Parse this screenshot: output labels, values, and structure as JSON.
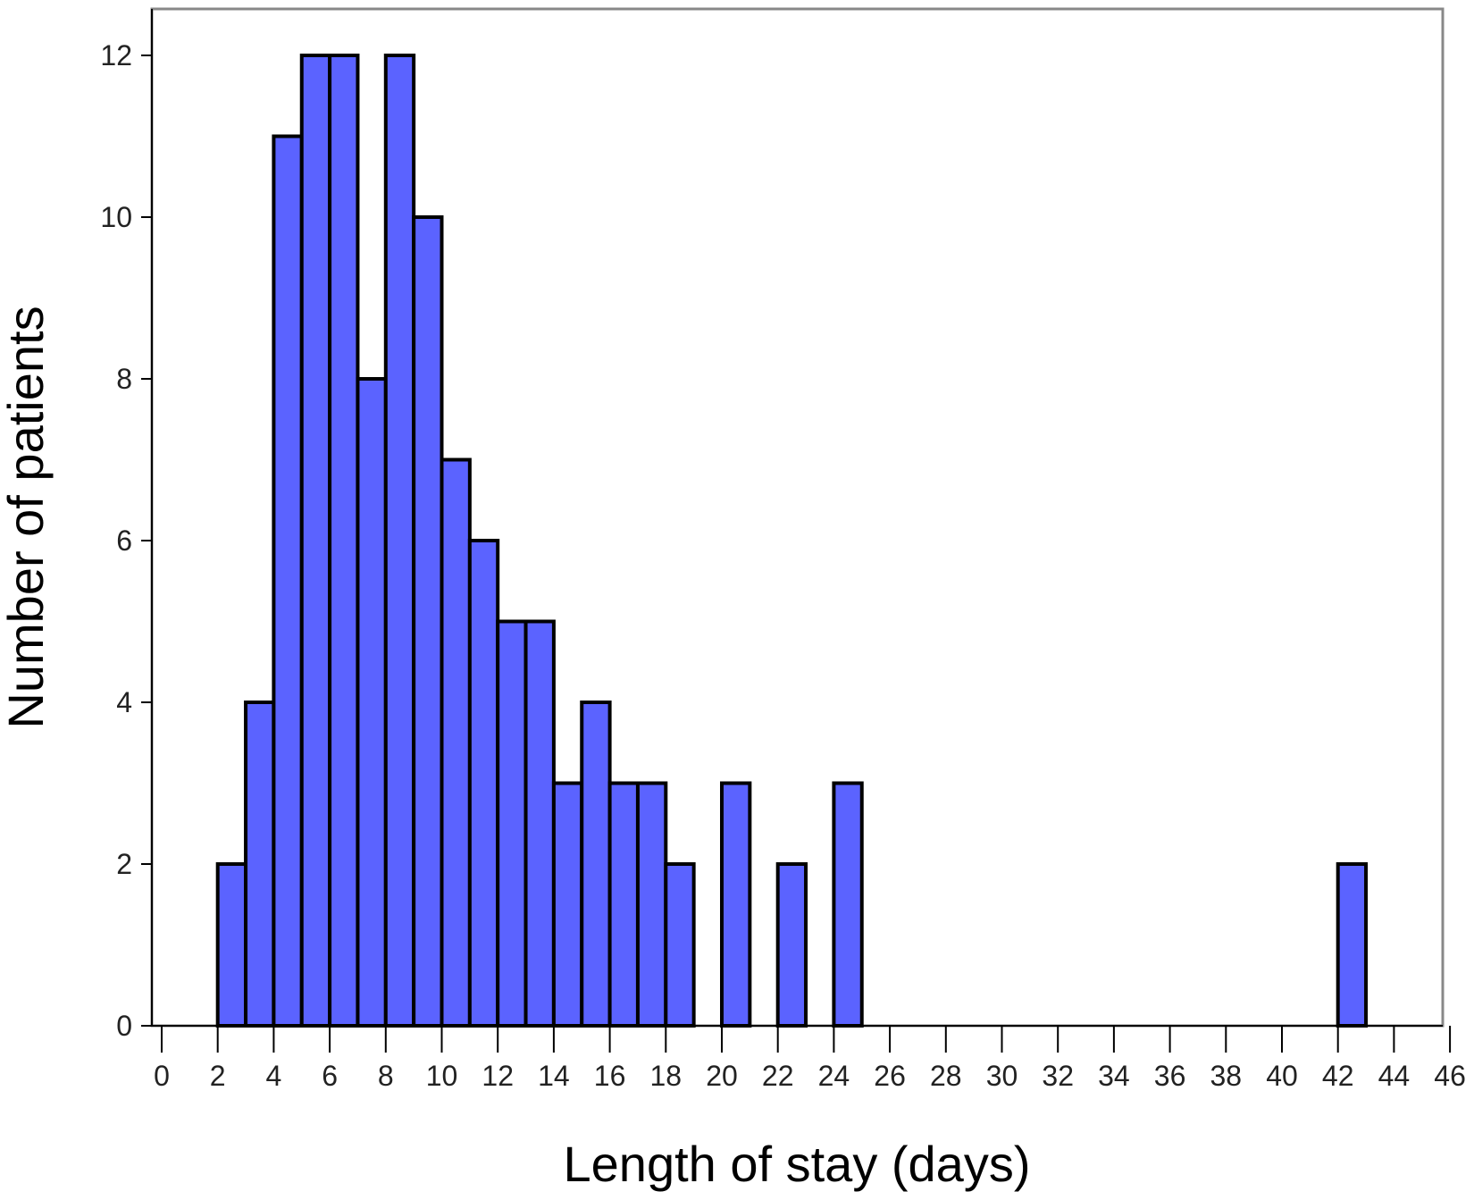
{
  "chart_data": {
    "type": "bar",
    "title": "",
    "xlabel": "Length of stay (days)",
    "ylabel": "Number of patients",
    "xlim": [
      0,
      46
    ],
    "ylim": [
      0,
      12
    ],
    "bin_width": 1,
    "x_ticks": [
      0,
      2,
      4,
      6,
      8,
      10,
      12,
      14,
      16,
      18,
      20,
      22,
      24,
      26,
      28,
      30,
      32,
      34,
      36,
      38,
      40,
      42,
      44,
      46
    ],
    "y_ticks": [
      0,
      2,
      4,
      6,
      8,
      10,
      12
    ],
    "grid": false,
    "bar_color": "#5b63ff",
    "bins": [
      {
        "x": 2,
        "count": 2
      },
      {
        "x": 3,
        "count": 4
      },
      {
        "x": 4,
        "count": 11
      },
      {
        "x": 5,
        "count": 12
      },
      {
        "x": 6,
        "count": 12
      },
      {
        "x": 7,
        "count": 8
      },
      {
        "x": 8,
        "count": 12
      },
      {
        "x": 9,
        "count": 10
      },
      {
        "x": 10,
        "count": 7
      },
      {
        "x": 11,
        "count": 6
      },
      {
        "x": 12,
        "count": 5
      },
      {
        "x": 13,
        "count": 5
      },
      {
        "x": 14,
        "count": 3
      },
      {
        "x": 15,
        "count": 4
      },
      {
        "x": 16,
        "count": 3
      },
      {
        "x": 17,
        "count": 3
      },
      {
        "x": 18,
        "count": 2
      },
      {
        "x": 20,
        "count": 3
      },
      {
        "x": 22,
        "count": 2
      },
      {
        "x": 24,
        "count": 3
      },
      {
        "x": 42,
        "count": 2
      }
    ]
  }
}
